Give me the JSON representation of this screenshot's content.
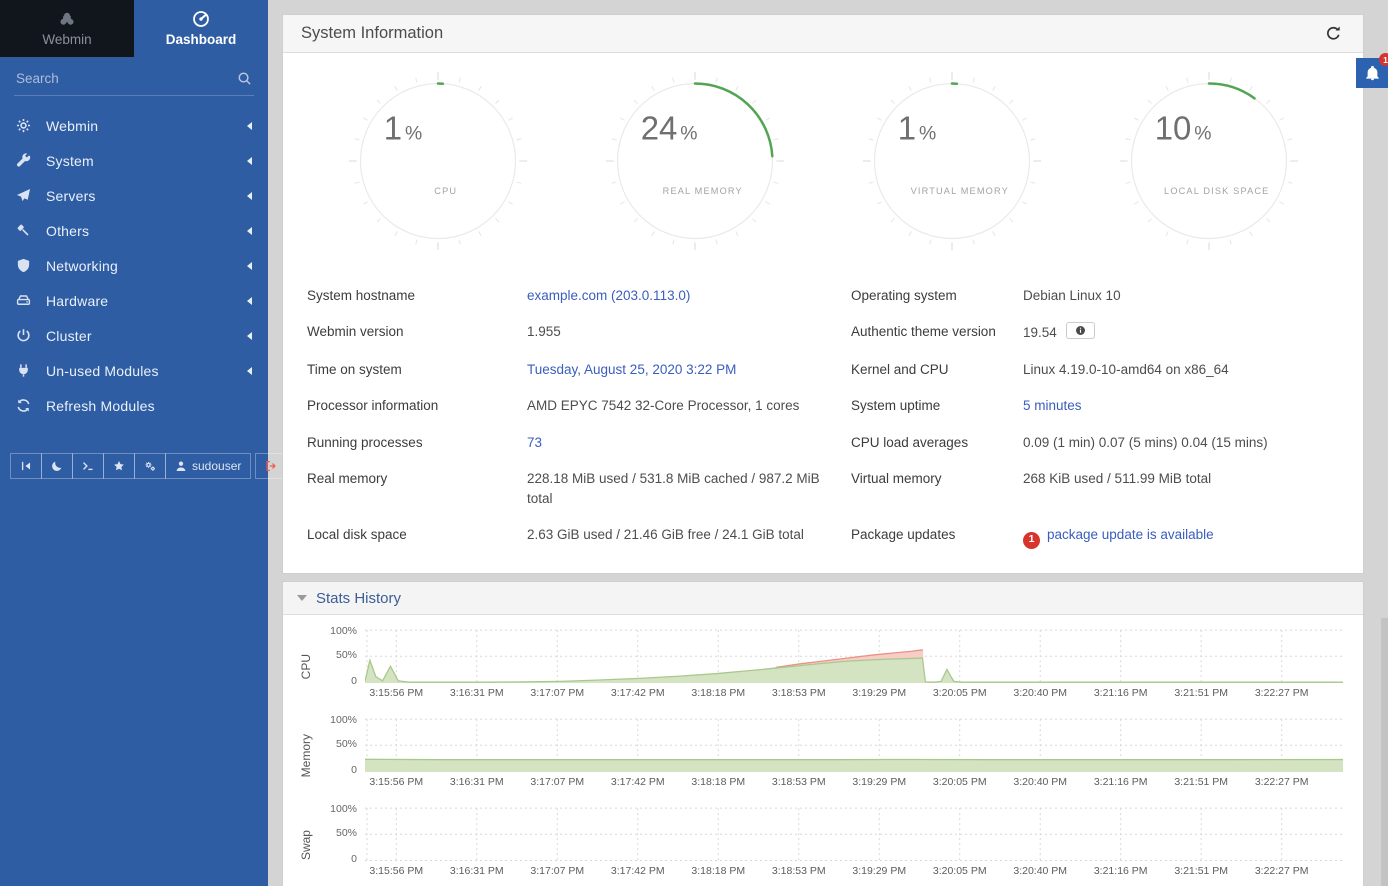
{
  "sidebar": {
    "tabs": [
      {
        "label": "Webmin",
        "icon": "webmin-logo",
        "active": false
      },
      {
        "label": "Dashboard",
        "icon": "dashboard-gauge",
        "active": true
      }
    ],
    "search": {
      "placeholder": "Search"
    },
    "menu": [
      {
        "label": "Webmin",
        "icon": "gear",
        "caret": true
      },
      {
        "label": "System",
        "icon": "wrench",
        "caret": true
      },
      {
        "label": "Servers",
        "icon": "paper-plane",
        "caret": true
      },
      {
        "label": "Others",
        "icon": "hammer",
        "caret": true
      },
      {
        "label": "Networking",
        "icon": "shield",
        "caret": true
      },
      {
        "label": "Hardware",
        "icon": "hdd",
        "caret": true
      },
      {
        "label": "Cluster",
        "icon": "power",
        "caret": true
      },
      {
        "label": "Un-used Modules",
        "icon": "plug",
        "caret": true
      },
      {
        "label": "Refresh Modules",
        "icon": "refresh",
        "caret": false
      }
    ],
    "toolbar": [
      {
        "name": "collapse-sidebar",
        "icon": "collapse",
        "label": ""
      },
      {
        "name": "night-mode",
        "icon": "moon",
        "label": ""
      },
      {
        "name": "terminal",
        "icon": "terminal",
        "label": ""
      },
      {
        "name": "favorites",
        "icon": "star",
        "label": ""
      },
      {
        "name": "theme-settings",
        "icon": "gears",
        "label": ""
      },
      {
        "name": "user",
        "icon": "user",
        "label": "sudouser"
      },
      {
        "name": "logout",
        "icon": "logout",
        "label": ""
      }
    ]
  },
  "header": {
    "title": "System Information"
  },
  "notifications": {
    "count": "1"
  },
  "stats": {
    "title": "Stats History"
  },
  "gauges": [
    {
      "value": 1,
      "display": "1",
      "unit": "%",
      "label": "CPU"
    },
    {
      "value": 24,
      "display": "24",
      "unit": "%",
      "label": "REAL MEMORY"
    },
    {
      "value": 1,
      "display": "1",
      "unit": "%",
      "label": "VIRTUAL MEMORY"
    },
    {
      "value": 10,
      "display": "10",
      "unit": "%",
      "label": "LOCAL DISK SPACE"
    }
  ],
  "info": {
    "left": [
      {
        "label": "System hostname",
        "value": "example.com (203.0.113.0)",
        "link": true
      },
      {
        "label": "Webmin version",
        "value": "1.955"
      },
      {
        "label": "Time on system",
        "value": "Tuesday, August 25, 2020 3:22 PM",
        "link": true
      },
      {
        "label": "Processor information",
        "value": "AMD EPYC 7542 32-Core Processor, 1 cores"
      },
      {
        "label": "Running processes",
        "value": "73",
        "link": true
      },
      {
        "label": "Real memory",
        "value": "228.18 MiB used / 531.8 MiB cached / 987.2 MiB total"
      },
      {
        "label": "Local disk space",
        "value": "2.63 GiB used / 21.46 GiB free / 24.1 GiB total"
      }
    ],
    "right": [
      {
        "label": "Operating system",
        "value": "Debian Linux 10"
      },
      {
        "label": "Authentic theme version",
        "value": "19.54",
        "info_badge": true
      },
      {
        "label": "Kernel and CPU",
        "value": "Linux 4.19.0-10-amd64 on x86_64"
      },
      {
        "label": "System uptime",
        "value": "5 minutes",
        "link": true
      },
      {
        "label": "CPU load averages",
        "value": "0.09 (1 min) 0.07 (5 mins) 0.04 (15 mins)"
      },
      {
        "label": "Virtual memory",
        "value": "268 KiB used / 511.99 MiB total"
      },
      {
        "label": "Package updates",
        "value": "package update is available",
        "link": true,
        "count_badge": "1"
      }
    ]
  },
  "chart_data": [
    {
      "type": "area",
      "id": "cpu",
      "title": "CPU",
      "ylabel": "CPU",
      "yticks": [
        "100%",
        "50%",
        "0"
      ],
      "ylim": [
        0,
        100
      ],
      "grid": true,
      "x_labels": [
        "3:15:56 PM",
        "3:16:31 PM",
        "3:17:07 PM",
        "3:17:42 PM",
        "3:18:18 PM",
        "3:18:53 PM",
        "3:19:29 PM",
        "3:20:05 PM",
        "3:20:40 PM",
        "3:21:16 PM",
        "3:21:51 PM",
        "3:22:27 PM"
      ],
      "areas": [
        {
          "name": "cpu-system",
          "fill": "#f7cdc7",
          "stroke": "#ec9186",
          "top": [
            [
              42,
              29
            ],
            [
              44.5,
              35.5
            ],
            [
              47,
              41
            ],
            [
              49.5,
              46.5
            ],
            [
              52,
              52
            ],
            [
              54,
              55.5
            ],
            [
              55.8,
              58.5
            ],
            [
              56.8,
              61
            ],
            [
              57.05,
              61
            ]
          ],
          "bottom": [
            [
              42,
              28.2
            ],
            [
              44.5,
              33.2
            ],
            [
              47,
              37
            ],
            [
              49.5,
              40.6
            ],
            [
              52,
              43
            ],
            [
              54,
              44.5
            ],
            [
              56,
              45.5
            ],
            [
              57.1,
              46
            ]
          ]
        },
        {
          "name": "cpu-user",
          "fill": "#d4e4c3",
          "stroke": "#a9c98c",
          "top": [
            [
              0,
              3
            ],
            [
              0.5,
              42
            ],
            [
              1.1,
              12
            ],
            [
              1.8,
              4
            ],
            [
              2.6,
              31
            ],
            [
              3.4,
              4
            ],
            [
              4.5,
              1.5
            ],
            [
              8,
              1.5
            ],
            [
              12,
              1.5
            ],
            [
              16,
              2
            ],
            [
              20,
              3
            ],
            [
              24,
              5.5
            ],
            [
              28,
              8.5
            ],
            [
              32,
              12.5
            ],
            [
              36,
              17.5
            ],
            [
              40,
              24
            ],
            [
              43,
              29.5
            ],
            [
              46,
              35
            ],
            [
              49,
              40
            ],
            [
              52,
              43
            ],
            [
              54,
              44.5
            ],
            [
              56,
              45.5
            ],
            [
              57,
              46
            ],
            [
              57.3,
              2
            ],
            [
              58.2,
              1.5
            ],
            [
              58.9,
              3
            ],
            [
              59.5,
              25
            ],
            [
              60.2,
              3
            ],
            [
              61,
              1.5
            ],
            [
              68,
              1.5
            ],
            [
              76,
              1.5
            ],
            [
              84,
              1.5
            ],
            [
              92,
              1.5
            ],
            [
              100,
              1.5
            ]
          ],
          "bottom": "baseline"
        }
      ]
    },
    {
      "type": "area",
      "id": "memory",
      "title": "Memory",
      "ylabel": "Memory",
      "yticks": [
        "100%",
        "50%",
        "0"
      ],
      "ylim": [
        0,
        100
      ],
      "grid": true,
      "x_labels": [
        "3:15:56 PM",
        "3:16:31 PM",
        "3:17:07 PM",
        "3:17:42 PM",
        "3:18:18 PM",
        "3:18:53 PM",
        "3:19:29 PM",
        "3:20:05 PM",
        "3:20:40 PM",
        "3:21:16 PM",
        "3:21:51 PM",
        "3:22:27 PM"
      ],
      "areas": [
        {
          "name": "memory-used",
          "fill": "#d4e4c3",
          "stroke": "#a9c98c",
          "top": [
            [
              0,
              23.5
            ],
            [
              8,
              22.8
            ],
            [
              16,
              22.8
            ],
            [
              24,
              22.8
            ],
            [
              32,
              22.8
            ],
            [
              40,
              22.8
            ],
            [
              48,
              22.8
            ],
            [
              56,
              23.2
            ],
            [
              64,
              22.8
            ],
            [
              72,
              22.8
            ],
            [
              80,
              22.8
            ],
            [
              88,
              22.8
            ],
            [
              100,
              23
            ]
          ],
          "bottom": "baseline"
        }
      ]
    },
    {
      "type": "area",
      "id": "swap",
      "title": "Swap",
      "ylabel": "Swap",
      "yticks": [
        "100%",
        "50%",
        "0"
      ],
      "ylim": [
        0,
        100
      ],
      "grid": true,
      "x_labels": [
        "3:15:56 PM",
        "3:16:31 PM",
        "3:17:07 PM",
        "3:17:42 PM",
        "3:18:18 PM",
        "3:18:53 PM",
        "3:19:29 PM",
        "3:20:05 PM",
        "3:20:40 PM",
        "3:21:16 PM",
        "3:21:51 PM",
        "3:22:27 PM"
      ],
      "areas": []
    }
  ]
}
